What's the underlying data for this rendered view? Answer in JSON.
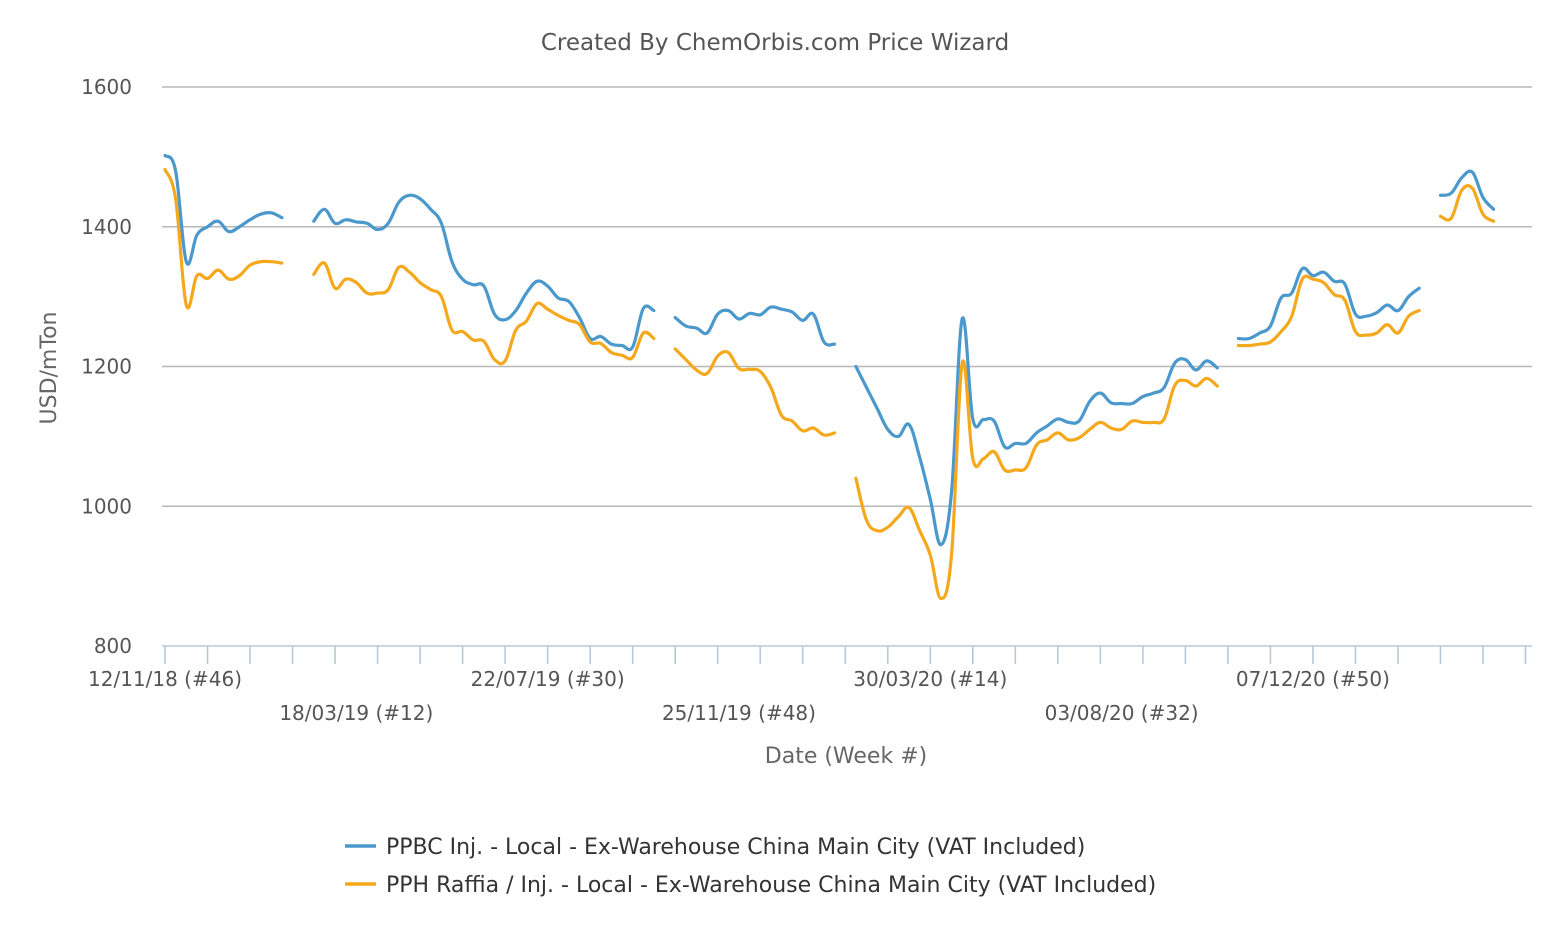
{
  "chart_data": {
    "type": "line",
    "title": "Created By ChemOrbis.com Price Wizard",
    "xlabel": "Date (Week #)",
    "ylabel": "USD/mTon",
    "ylim": [
      800,
      1600
    ],
    "yticks": [
      800,
      1000,
      1200,
      1400,
      1600
    ],
    "grid": true,
    "legend_position": "bottom",
    "x_start": "2018-11-12",
    "x_end": "2021-03-29",
    "xtick_labels": [
      {
        "date": "2018-11-12",
        "label": "12/11/18 (#46)",
        "row": 1
      },
      {
        "date": "2019-03-18",
        "label": "18/03/19 (#12)",
        "row": 2
      },
      {
        "date": "2019-07-22",
        "label": "22/07/19 (#30)",
        "row": 1
      },
      {
        "date": "2019-11-25",
        "label": "25/11/19 (#48)",
        "row": 2
      },
      {
        "date": "2020-03-30",
        "label": "30/03/20 (#14)",
        "row": 1
      },
      {
        "date": "2020-08-03",
        "label": "03/08/20 (#32)",
        "row": 2
      },
      {
        "date": "2020-12-07",
        "label": "07/12/20 (#50)",
        "row": 1
      }
    ],
    "series": [
      {
        "name": "PPBC Inj. - Local - Ex-Warehouse China Main City (VAT Included)",
        "color": "#4a98cc",
        "segments": [
          [
            [
              "2018-11-12",
              1502
            ],
            [
              "2018-11-19",
              1480
            ],
            [
              "2018-11-26",
              1350
            ],
            [
              "2018-12-03",
              1388
            ],
            [
              "2018-12-10",
              1400
            ],
            [
              "2018-12-17",
              1408
            ],
            [
              "2018-12-24",
              1393
            ],
            [
              "2018-12-31",
              1400
            ],
            [
              "2019-01-07",
              1410
            ],
            [
              "2019-01-14",
              1418
            ],
            [
              "2019-01-21",
              1420
            ],
            [
              "2019-01-28",
              1413
            ]
          ],
          [
            [
              "2019-02-18",
              1408
            ],
            [
              "2019-02-25",
              1425
            ],
            [
              "2019-03-04",
              1405
            ],
            [
              "2019-03-11",
              1410
            ],
            [
              "2019-03-18",
              1407
            ],
            [
              "2019-03-25",
              1405
            ],
            [
              "2019-04-01",
              1396
            ],
            [
              "2019-04-08",
              1405
            ],
            [
              "2019-04-15",
              1435
            ],
            [
              "2019-04-22",
              1445
            ],
            [
              "2019-04-29",
              1440
            ],
            [
              "2019-05-06",
              1425
            ],
            [
              "2019-05-13",
              1405
            ],
            [
              "2019-05-20",
              1350
            ],
            [
              "2019-05-27",
              1325
            ],
            [
              "2019-06-03",
              1317
            ],
            [
              "2019-06-10",
              1315
            ],
            [
              "2019-06-17",
              1275
            ],
            [
              "2019-06-24",
              1267
            ],
            [
              "2019-07-01",
              1280
            ],
            [
              "2019-07-08",
              1305
            ],
            [
              "2019-07-15",
              1322
            ],
            [
              "2019-07-22",
              1315
            ],
            [
              "2019-07-29",
              1298
            ],
            [
              "2019-08-05",
              1293
            ],
            [
              "2019-08-12",
              1270
            ],
            [
              "2019-08-19",
              1240
            ],
            [
              "2019-08-26",
              1243
            ],
            [
              "2019-09-02",
              1232
            ],
            [
              "2019-09-09",
              1230
            ],
            [
              "2019-09-16",
              1228
            ],
            [
              "2019-09-23",
              1283
            ],
            [
              "2019-09-30",
              1280
            ]
          ],
          [
            [
              "2019-10-14",
              1270
            ],
            [
              "2019-10-21",
              1258
            ],
            [
              "2019-10-28",
              1255
            ],
            [
              "2019-11-04",
              1248
            ],
            [
              "2019-11-11",
              1275
            ],
            [
              "2019-11-18",
              1280
            ],
            [
              "2019-11-25",
              1268
            ],
            [
              "2019-12-02",
              1276
            ],
            [
              "2019-12-09",
              1274
            ],
            [
              "2019-12-16",
              1285
            ],
            [
              "2019-12-23",
              1282
            ],
            [
              "2019-12-30",
              1278
            ],
            [
              "2020-01-06",
              1266
            ],
            [
              "2020-01-13",
              1275
            ],
            [
              "2020-01-20",
              1235
            ],
            [
              "2020-01-27",
              1232
            ]
          ],
          [
            [
              "2020-02-10",
              1200
            ],
            [
              "2020-02-17",
              1170
            ],
            [
              "2020-02-24",
              1140
            ],
            [
              "2020-03-02",
              1110
            ],
            [
              "2020-03-09",
              1100
            ],
            [
              "2020-03-16",
              1117
            ],
            [
              "2020-03-23",
              1070
            ],
            [
              "2020-03-30",
              1010
            ],
            [
              "2020-04-06",
              945
            ],
            [
              "2020-04-13",
              1020
            ],
            [
              "2020-04-20",
              1268
            ],
            [
              "2020-04-27",
              1125
            ],
            [
              "2020-05-04",
              1124
            ],
            [
              "2020-05-11",
              1122
            ],
            [
              "2020-05-18",
              1085
            ],
            [
              "2020-05-25",
              1090
            ],
            [
              "2020-06-01",
              1090
            ],
            [
              "2020-06-08",
              1105
            ],
            [
              "2020-06-15",
              1115
            ],
            [
              "2020-06-22",
              1125
            ],
            [
              "2020-06-29",
              1120
            ],
            [
              "2020-07-06",
              1122
            ],
            [
              "2020-07-13",
              1150
            ],
            [
              "2020-07-20",
              1162
            ],
            [
              "2020-07-27",
              1148
            ],
            [
              "2020-08-03",
              1147
            ],
            [
              "2020-08-10",
              1147
            ],
            [
              "2020-08-17",
              1157
            ],
            [
              "2020-08-24",
              1162
            ],
            [
              "2020-08-31",
              1170
            ],
            [
              "2020-09-07",
              1205
            ],
            [
              "2020-09-14",
              1210
            ],
            [
              "2020-09-21",
              1195
            ],
            [
              "2020-09-28",
              1208
            ],
            [
              "2020-10-05",
              1198
            ]
          ],
          [
            [
              "2020-10-19",
              1240
            ],
            [
              "2020-10-26",
              1240
            ],
            [
              "2020-11-02",
              1248
            ],
            [
              "2020-11-09",
              1258
            ],
            [
              "2020-11-16",
              1298
            ],
            [
              "2020-11-23",
              1305
            ],
            [
              "2020-11-30",
              1340
            ],
            [
              "2020-12-07",
              1330
            ],
            [
              "2020-12-14",
              1335
            ],
            [
              "2020-12-21",
              1322
            ],
            [
              "2020-12-28",
              1318
            ],
            [
              "2021-01-04",
              1275
            ],
            [
              "2021-01-11",
              1272
            ],
            [
              "2021-01-18",
              1277
            ],
            [
              "2021-01-25",
              1288
            ],
            [
              "2021-02-01",
              1280
            ],
            [
              "2021-02-08",
              1300
            ],
            [
              "2021-02-15",
              1312
            ]
          ],
          [
            [
              "2021-03-01",
              1445
            ],
            [
              "2021-03-08",
              1448
            ],
            [
              "2021-03-15",
              1470
            ],
            [
              "2021-03-22",
              1478
            ],
            [
              "2021-03-29",
              1442
            ],
            [
              "2021-04-05",
              1425
            ]
          ]
        ]
      },
      {
        "name": "PPH Raffia / Inj. - Local - Ex-Warehouse China Main City (VAT Included)",
        "color": "#f5a81c",
        "segments": [
          [
            [
              "2018-11-12",
              1482
            ],
            [
              "2018-11-19",
              1440
            ],
            [
              "2018-11-26",
              1288
            ],
            [
              "2018-12-03",
              1330
            ],
            [
              "2018-12-10",
              1326
            ],
            [
              "2018-12-17",
              1338
            ],
            [
              "2018-12-24",
              1325
            ],
            [
              "2018-12-31",
              1330
            ],
            [
              "2019-01-07",
              1345
            ],
            [
              "2019-01-14",
              1350
            ],
            [
              "2019-01-21",
              1350
            ],
            [
              "2019-01-28",
              1348
            ]
          ],
          [
            [
              "2019-02-18",
              1332
            ],
            [
              "2019-02-25",
              1348
            ],
            [
              "2019-03-04",
              1312
            ],
            [
              "2019-03-11",
              1325
            ],
            [
              "2019-03-18",
              1320
            ],
            [
              "2019-03-25",
              1305
            ],
            [
              "2019-04-01",
              1305
            ],
            [
              "2019-04-08",
              1310
            ],
            [
              "2019-04-15",
              1342
            ],
            [
              "2019-04-22",
              1335
            ],
            [
              "2019-04-29",
              1320
            ],
            [
              "2019-05-06",
              1310
            ],
            [
              "2019-05-13",
              1300
            ],
            [
              "2019-05-20",
              1252
            ],
            [
              "2019-05-27",
              1250
            ],
            [
              "2019-06-03",
              1238
            ],
            [
              "2019-06-10",
              1236
            ],
            [
              "2019-06-17",
              1210
            ],
            [
              "2019-06-24",
              1208
            ],
            [
              "2019-07-01",
              1252
            ],
            [
              "2019-07-08",
              1265
            ],
            [
              "2019-07-15",
              1290
            ],
            [
              "2019-07-22",
              1282
            ],
            [
              "2019-07-29",
              1273
            ],
            [
              "2019-08-05",
              1266
            ],
            [
              "2019-08-12",
              1260
            ],
            [
              "2019-08-19",
              1235
            ],
            [
              "2019-08-26",
              1233
            ],
            [
              "2019-09-02",
              1220
            ],
            [
              "2019-09-09",
              1216
            ],
            [
              "2019-09-16",
              1213
            ],
            [
              "2019-09-23",
              1248
            ],
            [
              "2019-09-30",
              1240
            ]
          ],
          [
            [
              "2019-10-14",
              1225
            ],
            [
              "2019-10-21",
              1210
            ],
            [
              "2019-10-28",
              1195
            ],
            [
              "2019-11-04",
              1190
            ],
            [
              "2019-11-11",
              1215
            ],
            [
              "2019-11-18",
              1220
            ],
            [
              "2019-11-25",
              1197
            ],
            [
              "2019-12-02",
              1196
            ],
            [
              "2019-12-09",
              1193
            ],
            [
              "2019-12-16",
              1170
            ],
            [
              "2019-12-23",
              1130
            ],
            [
              "2019-12-30",
              1122
            ],
            [
              "2020-01-06",
              1108
            ],
            [
              "2020-01-13",
              1112
            ],
            [
              "2020-01-20",
              1102
            ],
            [
              "2020-01-27",
              1105
            ]
          ],
          [
            [
              "2020-02-10",
              1040
            ],
            [
              "2020-02-17",
              980
            ],
            [
              "2020-02-24",
              965
            ],
            [
              "2020-03-02",
              970
            ],
            [
              "2020-03-09",
              985
            ],
            [
              "2020-03-16",
              998
            ],
            [
              "2020-03-23",
              965
            ],
            [
              "2020-03-30",
              930
            ],
            [
              "2020-04-06",
              868
            ],
            [
              "2020-04-13",
              930
            ],
            [
              "2020-04-20",
              1205
            ],
            [
              "2020-04-27",
              1068
            ],
            [
              "2020-05-04",
              1068
            ],
            [
              "2020-05-11",
              1078
            ],
            [
              "2020-05-18",
              1052
            ],
            [
              "2020-05-25",
              1052
            ],
            [
              "2020-06-01",
              1055
            ],
            [
              "2020-06-08",
              1088
            ],
            [
              "2020-06-15",
              1095
            ],
            [
              "2020-06-22",
              1105
            ],
            [
              "2020-06-29",
              1095
            ],
            [
              "2020-07-06",
              1098
            ],
            [
              "2020-07-13",
              1110
            ],
            [
              "2020-07-20",
              1120
            ],
            [
              "2020-07-27",
              1112
            ],
            [
              "2020-08-03",
              1110
            ],
            [
              "2020-08-10",
              1122
            ],
            [
              "2020-08-17",
              1120
            ],
            [
              "2020-08-24",
              1120
            ],
            [
              "2020-08-31",
              1125
            ],
            [
              "2020-09-07",
              1173
            ],
            [
              "2020-09-14",
              1180
            ],
            [
              "2020-09-21",
              1172
            ],
            [
              "2020-09-28",
              1183
            ],
            [
              "2020-10-05",
              1172
            ]
          ],
          [
            [
              "2020-10-19",
              1230
            ],
            [
              "2020-10-26",
              1230
            ],
            [
              "2020-11-02",
              1232
            ],
            [
              "2020-11-09",
              1235
            ],
            [
              "2020-11-16",
              1250
            ],
            [
              "2020-11-23",
              1272
            ],
            [
              "2020-11-30",
              1325
            ],
            [
              "2020-12-07",
              1325
            ],
            [
              "2020-12-14",
              1320
            ],
            [
              "2020-12-21",
              1303
            ],
            [
              "2020-12-28",
              1295
            ],
            [
              "2021-01-04",
              1250
            ],
            [
              "2021-01-11",
              1245
            ],
            [
              "2021-01-18",
              1248
            ],
            [
              "2021-01-25",
              1260
            ],
            [
              "2021-02-01",
              1248
            ],
            [
              "2021-02-08",
              1272
            ],
            [
              "2021-02-15",
              1280
            ]
          ],
          [
            [
              "2021-03-01",
              1415
            ],
            [
              "2021-03-08",
              1412
            ],
            [
              "2021-03-15",
              1452
            ],
            [
              "2021-03-22",
              1455
            ],
            [
              "2021-03-29",
              1418
            ],
            [
              "2021-04-05",
              1408
            ]
          ]
        ]
      }
    ]
  }
}
